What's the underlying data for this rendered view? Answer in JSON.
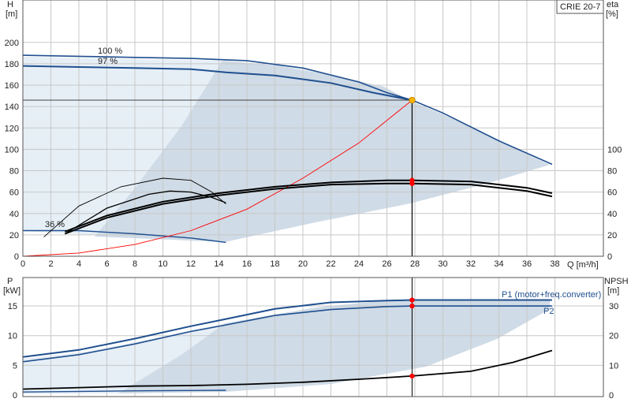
{
  "model_label": "CRIE 20-7",
  "upper_chart": {
    "y_left_label_line1": "H",
    "y_left_label_line2": "[m]",
    "y_right_label_line1": "eta",
    "y_right_label_line2": "[%]",
    "x_label": "Q [m³/h]",
    "curve_labels": {
      "full": "100 %",
      "reduced": "97 %",
      "min": "36 %"
    }
  },
  "lower_chart": {
    "y_left_label_line1": "P",
    "y_left_label_line2": "[kW]",
    "y_right_label_line1": "NPSH",
    "y_right_label_line2": "[m]",
    "series_labels": {
      "p1": "P1 (motor+freq.converter)",
      "p2": "P2"
    }
  },
  "colors": {
    "blue": "#1f4f8f",
    "area_dark": "#cfdbe6",
    "area_light": "#e6eef6",
    "red": "#ff0000",
    "duty_point": "#f5b400",
    "black": "#000000"
  },
  "chart_data": [
    {
      "type": "line",
      "title": "",
      "xlabel": "Q [m³/h]",
      "ylabel": "H [m]",
      "y2label": "eta [%]",
      "xlim": [
        0,
        40
      ],
      "ylim": [
        0,
        220
      ],
      "y2lim": [
        0,
        220
      ],
      "x_ticks": [
        0,
        2,
        4,
        6,
        8,
        10,
        12,
        14,
        16,
        18,
        20,
        22,
        24,
        26,
        28,
        30,
        32,
        34,
        36,
        38
      ],
      "y_ticks": [
        0,
        20,
        40,
        60,
        80,
        100,
        120,
        140,
        160,
        180,
        200
      ],
      "y2_ticks": [
        0,
        20,
        40,
        60,
        80,
        100
      ],
      "grid": true,
      "duty_point": {
        "x": 27.8,
        "y": 146
      },
      "series": [
        {
          "name": "100 %",
          "x": [
            0,
            4,
            8,
            12,
            16,
            20,
            24,
            26,
            27.8,
            30,
            34,
            37.8
          ],
          "y": [
            188,
            187,
            186,
            185,
            183,
            176,
            163,
            153,
            146,
            134,
            108,
            86
          ]
        },
        {
          "name": "97 %",
          "x": [
            0,
            4,
            8,
            12,
            14.5,
            18,
            22,
            25,
            27.8
          ],
          "y": [
            178,
            177,
            176,
            175,
            172,
            169,
            162,
            153,
            146
          ]
        },
        {
          "name": "36 %",
          "x": [
            0,
            4,
            8,
            12,
            14.5
          ],
          "y": [
            24,
            24,
            21,
            17,
            13
          ]
        },
        {
          "name": "",
          "x": [
            0,
            4,
            8,
            12,
            16,
            20,
            24,
            27.8
          ],
          "y": [
            0,
            3,
            11,
            24,
            44,
            73,
            106,
            146
          ]
        },
        {
          "name": "",
          "x": [
            3,
            6,
            10,
            14,
            18,
            22,
            26,
            27.8,
            32,
            36,
            37.8
          ],
          "y": [
            23,
            38,
            51,
            59,
            65,
            69,
            71,
            71,
            70,
            64,
            59
          ]
        },
        {
          "name": "",
          "x": [
            3,
            6,
            10,
            14,
            18,
            22,
            26,
            27.8,
            32,
            36,
            37.8
          ],
          "y": [
            21,
            36,
            49,
            57,
            63,
            67,
            68,
            68,
            67,
            61,
            56
          ]
        },
        {
          "name": "",
          "x": [
            1.5,
            4,
            7,
            10,
            12,
            13.5,
            14.5
          ],
          "y": [
            18,
            47,
            65,
            73,
            71,
            60,
            49
          ]
        },
        {
          "name": "",
          "x": [
            3,
            6,
            9,
            10.5,
            12,
            13.5,
            14.5
          ],
          "y": [
            21,
            45,
            58,
            61,
            60,
            55,
            50
          ]
        }
      ]
    },
    {
      "type": "line",
      "title": "",
      "xlabel": "",
      "ylabel": "P [kW]",
      "y2label": "NPSH [m]",
      "xlim": [
        0,
        40
      ],
      "ylim": [
        0,
        20
      ],
      "y2lim": [
        0,
        40
      ],
      "y_ticks": [
        0,
        5,
        10,
        15
      ],
      "y2_ticks": [
        0,
        10,
        20,
        30
      ],
      "grid": true,
      "series": [
        {
          "name": "P1 (motor+freq.converter)",
          "x": [
            0,
            4,
            8,
            12,
            14.5,
            18,
            22,
            26,
            27.8,
            32,
            37.8
          ],
          "y": [
            6.4,
            7.6,
            9.5,
            11.6,
            12.8,
            14.5,
            15.6,
            15.9,
            16.0,
            16.0,
            16.0
          ]
        },
        {
          "name": "P2",
          "x": [
            0,
            4,
            8,
            12,
            14.5,
            18,
            22,
            26,
            27.8,
            32,
            37.8
          ],
          "y": [
            5.6,
            6.8,
            8.6,
            10.7,
            11.8,
            13.4,
            14.4,
            14.9,
            15.0,
            15.0,
            15.0
          ]
        },
        {
          "name": "",
          "x": [
            0,
            8,
            14.5
          ],
          "y": [
            0.5,
            0.7,
            0.8
          ]
        },
        {
          "name": "",
          "x": [
            0,
            4,
            8,
            12,
            16,
            20,
            24,
            27.8,
            32,
            35,
            37.8
          ],
          "y2": [
            2,
            2.5,
            3,
            3.2,
            3.6,
            4.3,
            5.3,
            6.4,
            8.0,
            11,
            15
          ]
        }
      ]
    }
  ]
}
